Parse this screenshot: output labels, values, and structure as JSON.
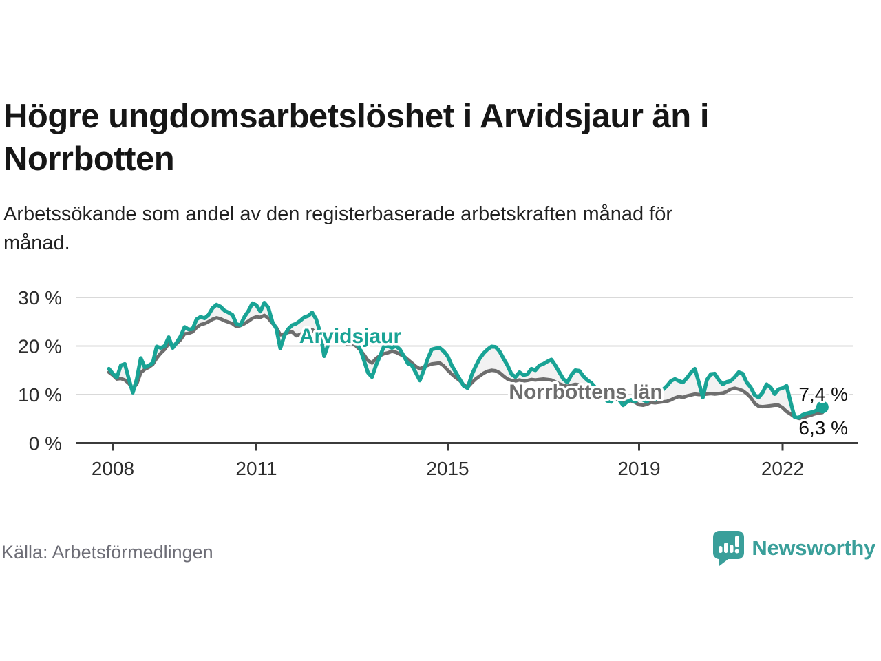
{
  "header": {
    "title": "Högre ungdomsarbetslöshet i Arvidsjaur än i\nNorrbotten",
    "subtitle": "Arbetssökande som andel av den registerbaserade arbetskraften månad för\nmånad."
  },
  "footer": {
    "source": "Källa: Arbetsförmedlingen",
    "brand_name": "Newsworthy",
    "brand_color": "#3a9f9a"
  },
  "colors": {
    "arvidsjaur_line": "#19a395",
    "norrbotten_line": "#6e6e6e",
    "band_fill": "#f2f2f2",
    "gridline": "#d9d9d9",
    "axis": "#3b3b3b",
    "end_label_text": "#101010"
  },
  "chart_data": {
    "type": "line",
    "x_start": 2007.9167,
    "x_step": 0.08333,
    "xlabel": "",
    "ylabel": "",
    "ylim": [
      0,
      30
    ],
    "grid": "horizontal",
    "y_ticks": [
      {
        "label": "0 %",
        "value": 0
      },
      {
        "label": "10 %",
        "value": 10
      },
      {
        "label": "20 %",
        "value": 20
      },
      {
        "label": "30 %",
        "value": 30
      }
    ],
    "x_ticks": [
      {
        "label": "2008",
        "year": 2008
      },
      {
        "label": "2011",
        "year": 2011
      },
      {
        "label": "2015",
        "year": 2015
      },
      {
        "label": "2019",
        "year": 2019
      },
      {
        "label": "2022",
        "year": 2022
      }
    ],
    "series": [
      {
        "name": "Arvidsjaur",
        "color": "#19a395",
        "end_label": "7,4 %",
        "values": [
          15.3,
          14.3,
          13.5,
          16.0,
          16.3,
          13.2,
          10.4,
          13.2,
          17.5,
          15.6,
          16.0,
          16.5,
          19.9,
          19.6,
          20.0,
          21.8,
          19.6,
          20.7,
          22.0,
          23.9,
          23.4,
          23.5,
          25.5,
          26.0,
          25.7,
          26.4,
          27.8,
          28.5,
          28.1,
          27.3,
          26.9,
          26.4,
          24.5,
          24.3,
          26.0,
          27.2,
          28.8,
          28.4,
          27.1,
          28.9,
          27.9,
          25.0,
          23.6,
          19.5,
          22.1,
          23.5,
          24.3,
          24.6,
          25.2,
          25.9,
          26.2,
          26.9,
          25.5,
          22.8,
          17.9,
          20.3,
          21.4,
          22.1,
          21.0,
          21.5,
          20.8,
          21.2,
          20.5,
          19.5,
          17.0,
          14.5,
          13.6,
          16.0,
          17.9,
          19.9,
          20.0,
          19.6,
          20.0,
          19.3,
          17.9,
          16.4,
          16.0,
          14.5,
          12.9,
          15.0,
          17.4,
          19.3,
          19.5,
          19.6,
          18.9,
          17.9,
          16.0,
          14.6,
          13.2,
          11.8,
          11.3,
          14.0,
          15.8,
          17.4,
          18.5,
          19.3,
          19.9,
          19.8,
          18.9,
          17.4,
          16.0,
          14.2,
          13.6,
          14.6,
          14.0,
          14.2,
          15.3,
          15.0,
          16.0,
          16.3,
          16.8,
          17.2,
          16.0,
          14.6,
          13.2,
          12.5,
          14.0,
          15.0,
          14.9,
          13.8,
          13.0,
          12.4,
          11.5,
          10.5,
          9.5,
          8.7,
          8.5,
          9.9,
          8.9,
          7.8,
          8.5,
          8.9,
          8.5,
          9.4,
          8.9,
          8.5,
          9.6,
          8.9,
          10.0,
          11.0,
          11.8,
          12.8,
          13.2,
          12.8,
          12.5,
          13.4,
          14.5,
          15.3,
          12.5,
          9.4,
          13.0,
          14.2,
          14.3,
          13.0,
          12.1,
          12.6,
          12.8,
          13.6,
          14.6,
          14.3,
          12.5,
          11.5,
          9.9,
          9.4,
          10.4,
          12.1,
          11.5,
          10.1,
          11.1,
          11.3,
          11.8,
          8.5,
          5.4,
          5.2,
          5.8,
          6.1,
          6.3,
          6.5,
          7.0,
          7.4
        ]
      },
      {
        "name": "Norrbottens län",
        "color": "#6e6e6e",
        "end_label": "6,3 %",
        "values": [
          14.6,
          14.0,
          13.2,
          13.3,
          13.0,
          12.3,
          11.2,
          12.2,
          14.5,
          15.2,
          15.6,
          16.2,
          17.5,
          18.5,
          19.3,
          20.5,
          20.0,
          20.5,
          21.3,
          22.5,
          22.6,
          22.9,
          23.8,
          24.4,
          24.6,
          25.0,
          25.5,
          25.8,
          25.6,
          25.2,
          24.9,
          24.6,
          24.0,
          24.2,
          24.6,
          25.1,
          25.7,
          26.0,
          25.9,
          26.3,
          25.7,
          24.7,
          23.8,
          22.3,
          22.5,
          22.8,
          22.9,
          22.1,
          22.4,
          22.8,
          23.1,
          23.4,
          22.6,
          21.6,
          20.6,
          20.9,
          21.3,
          21.2,
          20.8,
          20.6,
          20.3,
          20.6,
          20.0,
          19.2,
          18.2,
          17.0,
          16.5,
          17.4,
          18.0,
          18.4,
          18.6,
          18.9,
          18.7,
          18.3,
          17.9,
          17.2,
          16.5,
          15.8,
          15.3,
          15.7,
          16.0,
          16.3,
          16.4,
          16.5,
          15.9,
          15.0,
          14.2,
          13.5,
          12.9,
          12.0,
          11.5,
          12.4,
          13.2,
          13.8,
          14.4,
          14.8,
          15.0,
          14.9,
          14.5,
          13.8,
          13.2,
          12.9,
          12.8,
          13.0,
          12.8,
          12.9,
          13.1,
          13.0,
          13.1,
          13.2,
          13.1,
          13.0,
          12.6,
          12.2,
          11.9,
          11.7,
          11.9,
          12.1,
          12.0,
          11.6,
          11.2,
          10.8,
          10.4,
          10.0,
          9.6,
          9.2,
          9.0,
          9.2,
          8.9,
          8.5,
          8.6,
          8.7,
          8.4,
          7.9,
          7.8,
          8.0,
          8.4,
          8.3,
          8.4,
          8.5,
          8.6,
          8.9,
          9.3,
          9.6,
          9.4,
          9.7,
          9.9,
          10.1,
          10.0,
          10.0,
          10.1,
          10.2,
          10.1,
          10.2,
          10.3,
          10.6,
          11.1,
          11.3,
          11.1,
          10.8,
          10.2,
          9.4,
          8.2,
          7.6,
          7.5,
          7.6,
          7.7,
          7.8,
          7.8,
          7.3,
          6.5,
          6.0,
          5.4,
          5.1,
          5.0,
          5.5,
          5.7,
          6.0,
          6.2,
          6.3
        ]
      }
    ]
  }
}
